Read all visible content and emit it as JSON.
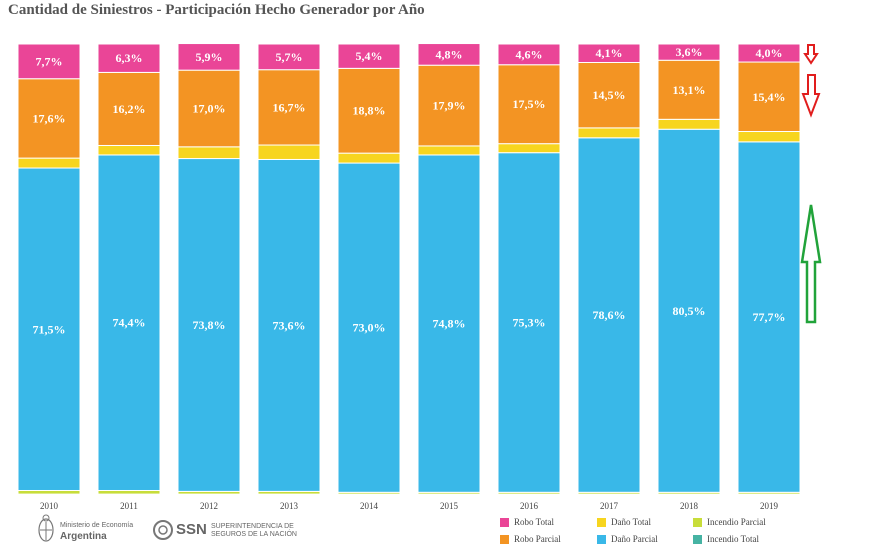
{
  "title": "Cantidad de Siniestros - Participación Hecho Generador por Año",
  "colors": {
    "robo_total": "#ea4597",
    "robo_parcial": "#f39423",
    "dano_total": "#f7d51f",
    "dano_parcial": "#39b8e8",
    "incendio_parcial": "#c8dd3a",
    "incendio_total": "#46b3a3",
    "arrow_red": "#e11d1d",
    "arrow_green": "#21a33a"
  },
  "chart_data": {
    "type": "bar",
    "stacked": true,
    "categories": [
      "2010",
      "2011",
      "2012",
      "2013",
      "2014",
      "2015",
      "2016",
      "2017",
      "2018",
      "2019"
    ],
    "ylim": [
      0,
      100
    ],
    "series": [
      {
        "name": "Incendio Total",
        "key": "incendio_total",
        "values": [
          0.2,
          0.2,
          0.2,
          0.2,
          0.2,
          0.2,
          0.2,
          0.2,
          0.2,
          0.2
        ]
      },
      {
        "name": "Incendio Parcial",
        "key": "incendio_parcial",
        "values": [
          0.8,
          0.8,
          0.6,
          0.6,
          0.4,
          0.4,
          0.4,
          0.4,
          0.4,
          0.4
        ]
      },
      {
        "name": "Daño Parcial",
        "key": "dano_parcial",
        "values": [
          71.5,
          74.4,
          73.8,
          73.6,
          73.0,
          74.8,
          75.3,
          78.6,
          80.5,
          77.7
        ]
      },
      {
        "name": "Daño Total",
        "key": "dano_total",
        "values": [
          2.2,
          2.1,
          2.6,
          3.2,
          2.2,
          2.0,
          2.0,
          2.2,
          2.2,
          2.3
        ]
      },
      {
        "name": "Robo Parcial",
        "key": "robo_parcial",
        "values": [
          17.6,
          16.2,
          17.0,
          16.7,
          18.8,
          17.9,
          17.5,
          14.5,
          13.1,
          15.4
        ]
      },
      {
        "name": "Robo Total",
        "key": "robo_total",
        "values": [
          7.7,
          6.3,
          5.9,
          5.7,
          5.4,
          4.8,
          4.6,
          4.1,
          3.6,
          4.0
        ]
      }
    ],
    "data_labels": {
      "robo_total": [
        "7,7%",
        "6,3%",
        "5,9%",
        "5,7%",
        "5,4%",
        "4,8%",
        "4,6%",
        "4,1%",
        "3,6%",
        "4,0%"
      ],
      "robo_parcial": [
        "17,6%",
        "16,2%",
        "17,0%",
        "16,7%",
        "18,8%",
        "17,9%",
        "17,5%",
        "14,5%",
        "13,1%",
        "15,4%"
      ],
      "dano_parcial": [
        "71,5%",
        "74,4%",
        "73,8%",
        "73,6%",
        "73,0%",
        "74,8%",
        "75,3%",
        "78,6%",
        "80,5%",
        "77,7%"
      ]
    },
    "legend": [
      {
        "label": "Robo Total",
        "key": "robo_total"
      },
      {
        "label": "Daño Total",
        "key": "dano_total"
      },
      {
        "label": "Incendio Parcial",
        "key": "incendio_parcial"
      },
      {
        "label": "Robo Parcial",
        "key": "robo_parcial"
      },
      {
        "label": "Daño Parcial",
        "key": "dano_parcial"
      },
      {
        "label": "Incendio Total",
        "key": "incendio_total"
      }
    ],
    "legend_position": "bottom-right",
    "grid": false,
    "annotations": [
      {
        "type": "arrow",
        "direction": "down",
        "color": "arrow_red",
        "points_to": "Robo Total"
      },
      {
        "type": "arrow",
        "direction": "down",
        "color": "arrow_red",
        "points_to": "Robo Parcial"
      },
      {
        "type": "arrow",
        "direction": "up",
        "color": "arrow_green",
        "points_to": "Daño Parcial"
      }
    ]
  },
  "footer": {
    "ministry_line1": "Ministerio de Economía",
    "ministry_line2": "Argentina",
    "ssn_abbr": "SSN",
    "ssn_line1": "SUPERINTENDENCIA DE",
    "ssn_line2": "SEGUROS DE LA NACIÓN"
  }
}
